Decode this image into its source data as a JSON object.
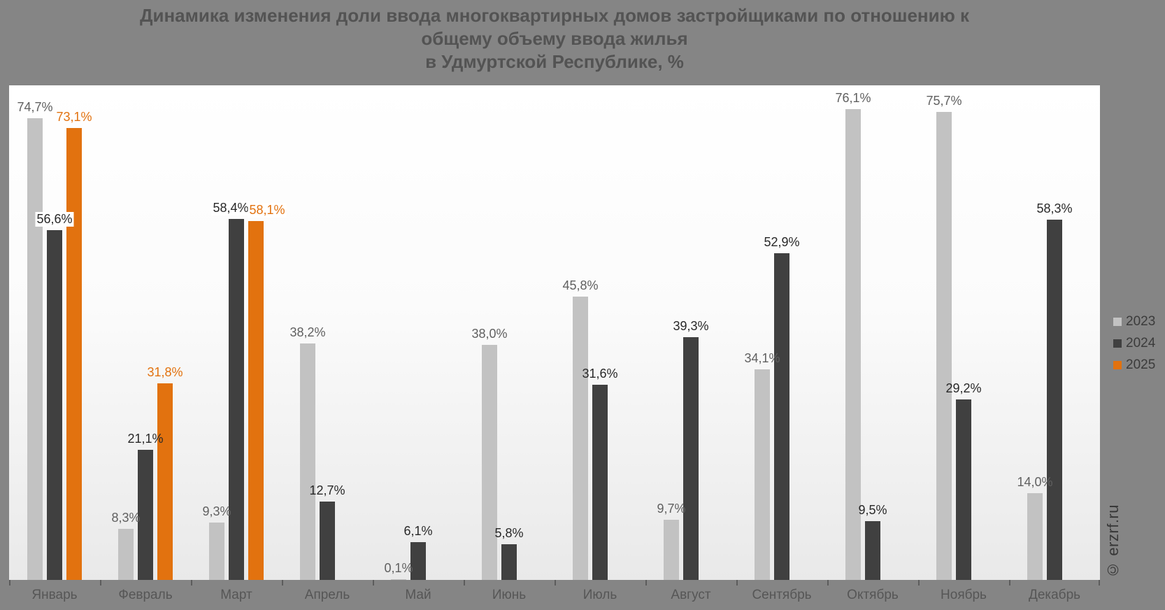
{
  "chart_data": {
    "type": "bar",
    "title": "Динамика изменения доли ввода многоквартирных домов застройщиками по отношению к общему объему ввода жилья в Удмуртской Республике, %",
    "title_lines": [
      "Динамика изменения доли ввода многоквартирных домов застройщиками по отношению к",
      "общему объему ввода жилья",
      "в Удмуртской Республике, %"
    ],
    "categories": [
      "Январь",
      "Февраль",
      "Март",
      "Апрель",
      "Май",
      "Июнь",
      "Июль",
      "Август",
      "Сентябрь",
      "Октябрь",
      "Ноябрь",
      "Декабрь"
    ],
    "ylim": [
      0,
      80
    ],
    "grid": false,
    "legend_position": "right",
    "series": [
      {
        "name": "2023",
        "color": "#c2c2c2",
        "label_color": "#606060",
        "values": [
          74.7,
          8.3,
          9.3,
          38.2,
          0.1,
          38.0,
          45.8,
          9.7,
          34.1,
          76.1,
          75.7,
          14.0
        ],
        "labels": [
          "74,7%",
          "8,3%",
          "9,3%",
          "38,2%",
          "0,1%",
          "38,0%",
          "45,8%",
          "9,7%",
          "34,1%",
          "76,1%",
          "75,7%",
          "14,0%"
        ],
        "boxed": [],
        "dx": {}
      },
      {
        "name": "2024",
        "color": "#404040",
        "label_color": "#282828",
        "values": [
          56.6,
          21.1,
          58.4,
          12.7,
          6.1,
          5.8,
          31.6,
          39.3,
          52.9,
          9.5,
          29.2,
          58.3
        ],
        "labels": [
          "56,6%",
          "21,1%",
          "58,4%",
          "12,7%",
          "6,1%",
          "5,8%",
          "31,6%",
          "39,3%",
          "52,9%",
          "9,5%",
          "29,2%",
          "58,3%"
        ],
        "boxed": [
          0,
          2
        ],
        "dx": {
          "2": -8
        }
      },
      {
        "name": "2025",
        "color": "#e2720f",
        "label_color": "#e2720f",
        "values": [
          73.1,
          31.8,
          58.1,
          null,
          null,
          null,
          null,
          null,
          null,
          null,
          null,
          null
        ],
        "labels": [
          "73,1%",
          "31,8%",
          "58,1%",
          "",
          "",
          "",
          "",
          "",
          "",
          "",
          "",
          ""
        ],
        "boxed": [
          2
        ],
        "dx": {
          "2": 16
        }
      }
    ],
    "watermark": "© erzrf.ru",
    "background_color": "#858585",
    "plot_top_color": "#ffffff",
    "plot_bottom_color": "#e9e9e9"
  }
}
